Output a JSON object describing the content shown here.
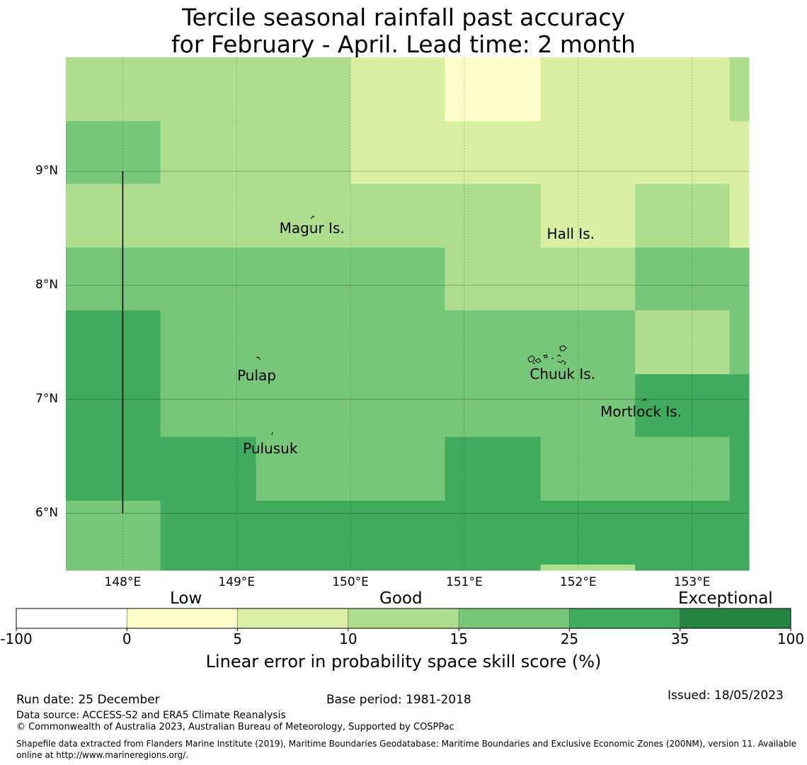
{
  "title": {
    "line1": "Tercile seasonal rainfall past accuracy",
    "line2": "for February - April. Lead time: 2 month"
  },
  "map": {
    "lat_labels": [
      "9°N",
      "8°N",
      "7°N",
      "6°N"
    ],
    "lon_labels": [
      "148°E",
      "149°E",
      "150°E",
      "151°E",
      "152°E",
      "153°E"
    ],
    "lat_values": [
      9,
      8,
      7,
      6
    ],
    "lon_values": [
      148,
      149,
      150,
      151,
      152,
      153
    ],
    "lon_range": [
      147.5,
      153.5
    ],
    "lat_range": [
      5.5,
      10.0
    ],
    "grid_lon_edges": [
      147.5,
      148.33,
      149.17,
      150.0,
      150.83,
      151.67,
      152.5,
      153.33,
      153.5
    ],
    "grid_lat_edges": [
      10.0,
      9.44,
      8.89,
      8.33,
      7.78,
      7.22,
      6.67,
      6.11,
      5.55,
      5.5
    ],
    "cell_classes": [
      [
        2,
        2,
        2,
        1,
        0,
        1,
        1,
        2
      ],
      [
        3,
        2,
        2,
        1,
        1,
        1,
        1,
        1
      ],
      [
        2,
        2,
        2,
        2,
        2,
        1,
        2,
        1
      ],
      [
        3,
        3,
        3,
        3,
        2,
        2,
        3,
        3
      ],
      [
        4,
        3,
        3,
        3,
        3,
        3,
        2,
        3
      ],
      [
        4,
        3,
        3,
        3,
        3,
        3,
        4,
        4
      ],
      [
        4,
        4,
        3,
        3,
        4,
        3,
        3,
        4
      ],
      [
        3,
        4,
        4,
        4,
        4,
        4,
        4,
        4
      ],
      [
        3,
        4,
        4,
        4,
        4,
        2,
        4,
        4
      ]
    ],
    "class_colors": [
      "#ffffcc",
      "#d9f0a3",
      "#addd8e",
      "#78c679",
      "#41ab5d",
      "#238443"
    ],
    "places": [
      {
        "name": "Magur Is.",
        "lon": 149.4,
        "lat": 8.5
      },
      {
        "name": "Hall Is.",
        "lon": 151.75,
        "lat": 8.45
      },
      {
        "name": "Pulap",
        "lon": 149.03,
        "lat": 7.21
      },
      {
        "name": "Chuuk Is.",
        "lon": 151.6,
        "lat": 7.22
      },
      {
        "name": "Mortlock Is.",
        "lon": 152.22,
        "lat": 6.89
      },
      {
        "name": "Pulusuk",
        "lon": 149.08,
        "lat": 6.57
      }
    ],
    "boundary_line": {
      "lon": 148.0,
      "lat_from": 6.0,
      "lat_to": 9.0
    }
  },
  "colorbar": {
    "categories": [
      "Low",
      "Good",
      "Exceptional"
    ],
    "ticks": [
      "-100",
      "0",
      "5",
      "10",
      "15",
      "25",
      "35",
      "100"
    ],
    "colors": [
      "#ffffff",
      "#ffffcc",
      "#d9f0a3",
      "#addd8e",
      "#78c679",
      "#41ab5d",
      "#238443"
    ],
    "label": "Linear error in probability space skill score (%)"
  },
  "footer": {
    "run_date": "Run date: 25 December",
    "base_period": "Base period: 1981-2018",
    "issued": "Issued: 18/05/2023",
    "data_source": "Data source: ACCESS-S2 and ERA5 Climate Reanalysis",
    "copyright": "© Commonwealth of Australia 2023, Australian Bureau of Meteorology, Supported by COSPPac",
    "shapefile_line1": "Shapefile data extracted from Flanders Marine Institute (2019), Maritime Boundaries Geodatabase: Maritime Boundaries and Exclusive Economic Zones (200NM), version 11. Available",
    "shapefile_line2": "online at http://www.marineregions.org/."
  }
}
